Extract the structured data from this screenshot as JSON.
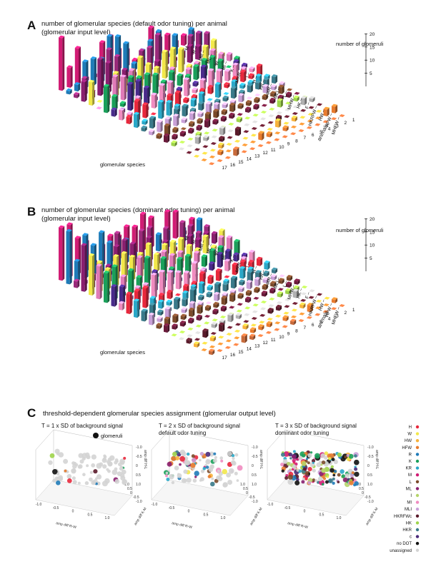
{
  "panels": {
    "a": {
      "letter": "A",
      "title": "number of glomerular species (default odor tuning) per animal\n(glomerular input level)",
      "zlabel": "number of glomeruli",
      "xlabel": "glomerular species",
      "ylabel": "animals"
    },
    "b": {
      "letter": "B",
      "title": "number of glomerular species (dominant odor tuning) per animal\n(glomerular input level)",
      "zlabel": "number of glomeruli",
      "xlabel": "glomerular species",
      "ylabel": "animals"
    },
    "c": {
      "letter": "C",
      "title": "threshold-dependent glomerular species assignment (glomerular output level)",
      "sub1": "T = 1 x SD of background signal",
      "sub2a": "T = 2 x SD of background signal",
      "sub2b": "default odor tuning",
      "sub3a": "T = 3 x SD of background signal",
      "sub3b": "dominant odor tuning",
      "marker_label": "glomeruli",
      "xlabel": "amp diff R-W",
      "ylabel": "amp diff K-M",
      "zlabel": "amp diff H-L"
    }
  },
  "chart_data": [
    {
      "id": "A",
      "type": "bar3d",
      "categories": [
        "M",
        "R",
        "MR",
        "ML",
        "W",
        "MI",
        "K",
        "MKR",
        "I",
        "H",
        "KR",
        "HKR",
        "MLI",
        "L",
        "MHW",
        "HK",
        "F",
        "HKRFW",
        "HW",
        "HFW",
        "MHFW"
      ],
      "animals": [
        "1",
        "2",
        "3",
        "4",
        "5",
        "6",
        "7",
        "8",
        "9",
        "10",
        "11",
        "12",
        "13",
        "14",
        "15",
        "16",
        "17"
      ],
      "zlim": [
        0,
        20
      ],
      "zticks": [
        "5",
        "10",
        "15",
        "20"
      ]
    },
    {
      "id": "B",
      "type": "bar3d",
      "categories": [
        "M",
        "R",
        "MR",
        "ML",
        "W",
        "MI",
        "K",
        "MKR",
        "I",
        "H",
        "KR",
        "HKR",
        "MLI",
        "L",
        "MHW",
        "HK",
        "F",
        "HKRFW",
        "HW",
        "HFW",
        "MHFW"
      ],
      "animals": [
        "1",
        "2",
        "3",
        "4",
        "5",
        "6",
        "7",
        "8",
        "9",
        "10",
        "11",
        "12",
        "13",
        "14",
        "15",
        "16",
        "17"
      ],
      "zlim": [
        0,
        20
      ],
      "zticks": [
        "5",
        "10",
        "15",
        "20"
      ]
    },
    {
      "id": "C",
      "type": "scatter3d",
      "axis_ticks": [
        "-1.0",
        "-0.5",
        "0",
        "0.5",
        "1.0"
      ],
      "legend": [
        {
          "label": "H",
          "color": "#e8283c"
        },
        {
          "label": "W",
          "color": "#f2e84a"
        },
        {
          "label": "HW",
          "color": "#f7b23b"
        },
        {
          "label": "HFW",
          "color": "#e87b2e"
        },
        {
          "label": "R",
          "color": "#1f7bb8"
        },
        {
          "label": "K",
          "color": "#1aa05a"
        },
        {
          "label": "KR",
          "color": "#2aa8c8"
        },
        {
          "label": "M",
          "color": "#d11c74"
        },
        {
          "label": "L",
          "color": "#7b4a2a"
        },
        {
          "label": "ML",
          "color": "#8a1f6f"
        },
        {
          "label": "I",
          "color": "#b6d56b"
        },
        {
          "label": "MI",
          "color": "#f08cc0"
        },
        {
          "label": "MLI",
          "color": "#c9a0d8"
        },
        {
          "label": "HKRFWc",
          "color": "#5a1a2a"
        },
        {
          "label": "HK",
          "color": "#9ed44a"
        },
        {
          "label": "HKR",
          "color": "#3a7a8a"
        },
        {
          "label": "c",
          "color": "#4a2a7a"
        },
        {
          "label": "no DOT",
          "color": "#111111"
        },
        {
          "label": "unassigned",
          "color": "#d4d4d4"
        }
      ]
    }
  ]
}
